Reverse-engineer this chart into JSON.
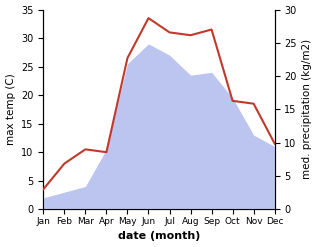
{
  "months": [
    "Jan",
    "Feb",
    "Mar",
    "Apr",
    "May",
    "Jun",
    "Jul",
    "Aug",
    "Sep",
    "Oct",
    "Nov",
    "Dec"
  ],
  "temp": [
    3.5,
    8.0,
    10.5,
    10.0,
    26.5,
    33.5,
    31.0,
    30.5,
    31.5,
    19.0,
    18.5,
    11.5
  ],
  "precip_left_scale": [
    2.0,
    3.0,
    4.0,
    10.5,
    25.5,
    29.0,
    27.0,
    23.5,
    24.0,
    19.5,
    13.0,
    11.0
  ],
  "temp_color": "#c0392b",
  "precip_fill_color": "#bbc5f0",
  "left_ylim": [
    0,
    35
  ],
  "right_ylim": [
    0,
    30
  ],
  "left_yticks": [
    0,
    5,
    10,
    15,
    20,
    25,
    30,
    35
  ],
  "right_yticks": [
    0,
    5,
    10,
    15,
    20,
    25,
    30
  ],
  "xlabel": "date (month)",
  "ylabel_left": "max temp (C)",
  "ylabel_right": "med. precipitation (kg/m2)",
  "figsize": [
    3.18,
    2.47
  ],
  "dpi": 100
}
